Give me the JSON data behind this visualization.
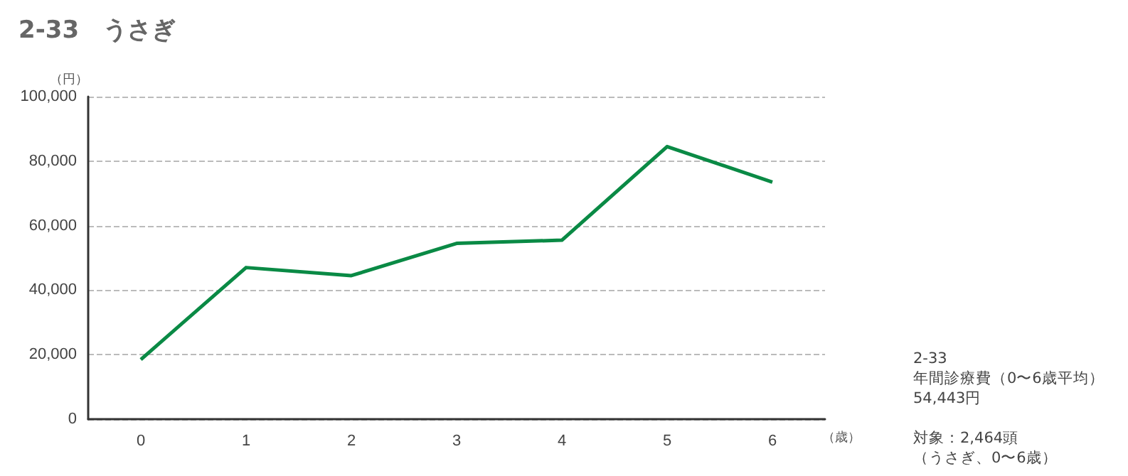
{
  "chart_data": {
    "type": "line",
    "title": "2-33　うさぎ",
    "xlabel": "（歳）",
    "ylabel": "（円）",
    "categories": [
      "0",
      "1",
      "2",
      "3",
      "4",
      "5",
      "6"
    ],
    "series": [
      {
        "color": "#0a8a45",
        "values": [
          18500,
          47000,
          44500,
          54500,
          55500,
          84500,
          73500
        ]
      }
    ],
    "ylim": [
      0,
      100000
    ],
    "yticks": [
      {
        "value": 0,
        "label": "0"
      },
      {
        "value": 20000,
        "label": "20,000"
      },
      {
        "value": 40000,
        "label": "40,000"
      },
      {
        "value": 60000,
        "label": "60,000"
      },
      {
        "value": 80000,
        "label": "80,000"
      },
      {
        "value": 100000,
        "label": "100,000"
      }
    ],
    "grid": "y",
    "marker": "none",
    "line_style": "solid",
    "annotations": [
      "2-33",
      "年間診療費（0〜6歳平均）",
      "54,443円",
      "対象：2,464頭",
      "（うさぎ、0〜6歳）"
    ]
  }
}
